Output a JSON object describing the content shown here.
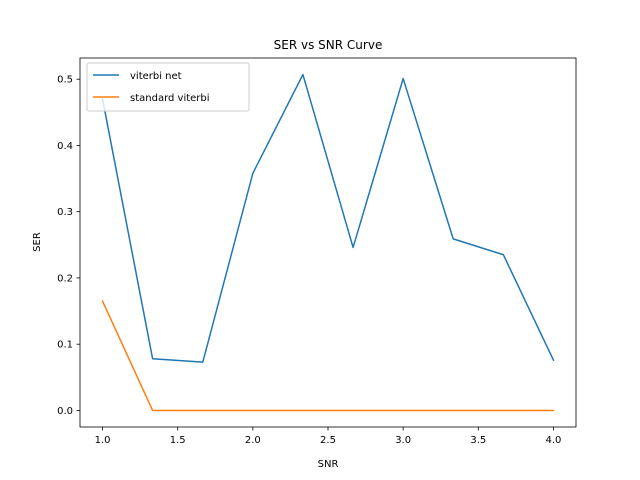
{
  "chart_data": {
    "type": "line",
    "title": "SER vs SNR Curve",
    "xlabel": "SNR",
    "ylabel": "SER",
    "xlim": [
      0.85,
      4.15
    ],
    "ylim": [
      -0.025,
      0.532
    ],
    "xticks": [
      1.0,
      1.5,
      2.0,
      2.5,
      3.0,
      3.5,
      4.0
    ],
    "xtick_labels": [
      "1.0",
      "1.5",
      "2.0",
      "2.5",
      "3.0",
      "3.5",
      "4.0"
    ],
    "yticks": [
      0.0,
      0.1,
      0.2,
      0.3,
      0.4,
      0.5
    ],
    "ytick_labels": [
      "0.0",
      "0.1",
      "0.2",
      "0.3",
      "0.4",
      "0.5"
    ],
    "grid": false,
    "legend_position": "top-left",
    "x": [
      1.0,
      1.333,
      1.667,
      2.0,
      2.333,
      2.667,
      3.0,
      3.333,
      3.667,
      4.0
    ],
    "series": [
      {
        "name": "viterbi net",
        "color": "#1f77b4",
        "values": [
          0.47,
          0.078,
          0.073,
          0.358,
          0.507,
          0.246,
          0.501,
          0.259,
          0.235,
          0.076
        ]
      },
      {
        "name": "standard viterbi",
        "color": "#ff7f0e",
        "values": [
          0.165,
          0.0,
          0.0,
          0.0,
          0.0,
          0.0,
          0.0,
          0.0,
          0.0,
          0.0
        ]
      }
    ]
  }
}
